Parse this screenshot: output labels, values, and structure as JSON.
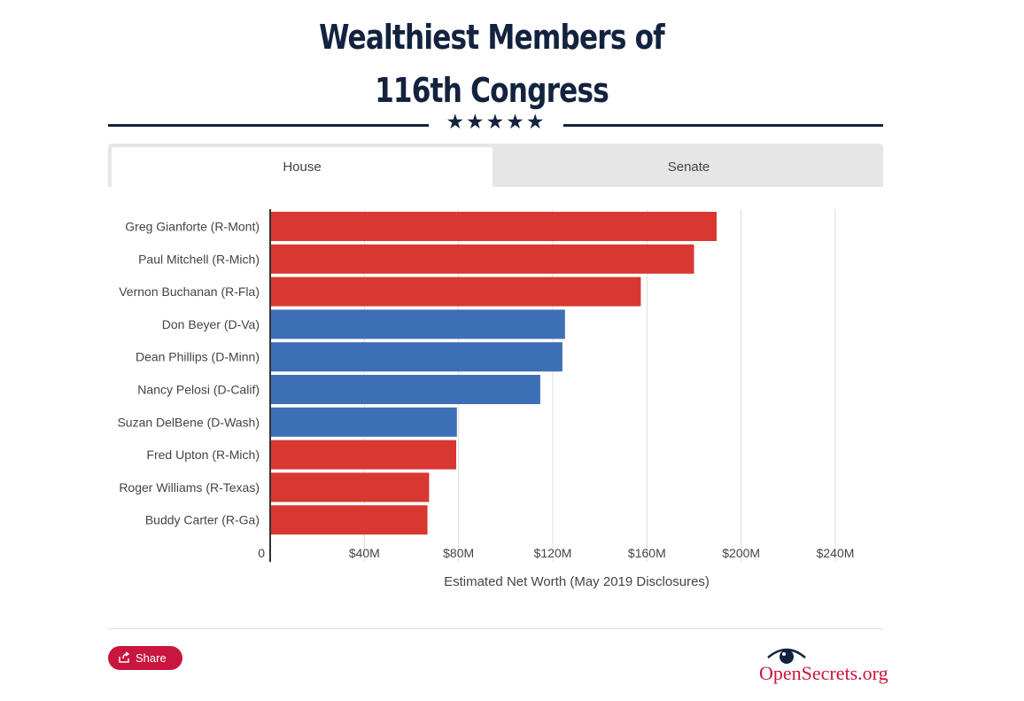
{
  "title": {
    "line1": "Wealthiest Members of",
    "line2": "116th Congress",
    "stars": "★★★★★"
  },
  "tabs": [
    {
      "label": "House",
      "active": true
    },
    {
      "label": "Senate",
      "active": false
    }
  ],
  "chart_data": {
    "type": "bar",
    "orientation": "horizontal",
    "title": "Wealthiest Members of 116th Congress",
    "xlabel": "Estimated Net Worth (May 2019 Disclosures)",
    "ylabel": "",
    "xlim": [
      0,
      240000000
    ],
    "x_ticks": [
      {
        "value": 0,
        "label": "0"
      },
      {
        "value": 40000000,
        "label": "$40M"
      },
      {
        "value": 80000000,
        "label": "$80M"
      },
      {
        "value": 120000000,
        "label": "$120M"
      },
      {
        "value": 160000000,
        "label": "$160M"
      },
      {
        "value": 200000000,
        "label": "$200M"
      },
      {
        "value": 240000000,
        "label": "$240M"
      }
    ],
    "grid": true,
    "legend": "none",
    "colors": {
      "R": "#d93732",
      "D": "#3d6fb6"
    },
    "categories": [
      "Greg Gianforte (R-Mont)",
      "Paul Mitchell (R-Mich)",
      "Vernon Buchanan (R-Fla)",
      "Don Beyer (D-Va)",
      "Dean Phillips (D-Minn)",
      "Nancy Pelosi (D-Calif)",
      "Suzan DelBene (D-Wash)",
      "Fred Upton (R-Mich)",
      "Roger Williams (R-Texas)",
      "Buddy Carter (R-Ga)"
    ],
    "values": [
      189600000,
      180000000,
      157400000,
      125200000,
      124100000,
      114700000,
      79300000,
      79000000,
      67500000,
      66800000
    ],
    "party": [
      "R",
      "R",
      "R",
      "D",
      "D",
      "D",
      "D",
      "R",
      "R",
      "R"
    ]
  },
  "footer": {
    "share_label": "Share",
    "logo_text": "OpenSecrets.org"
  }
}
